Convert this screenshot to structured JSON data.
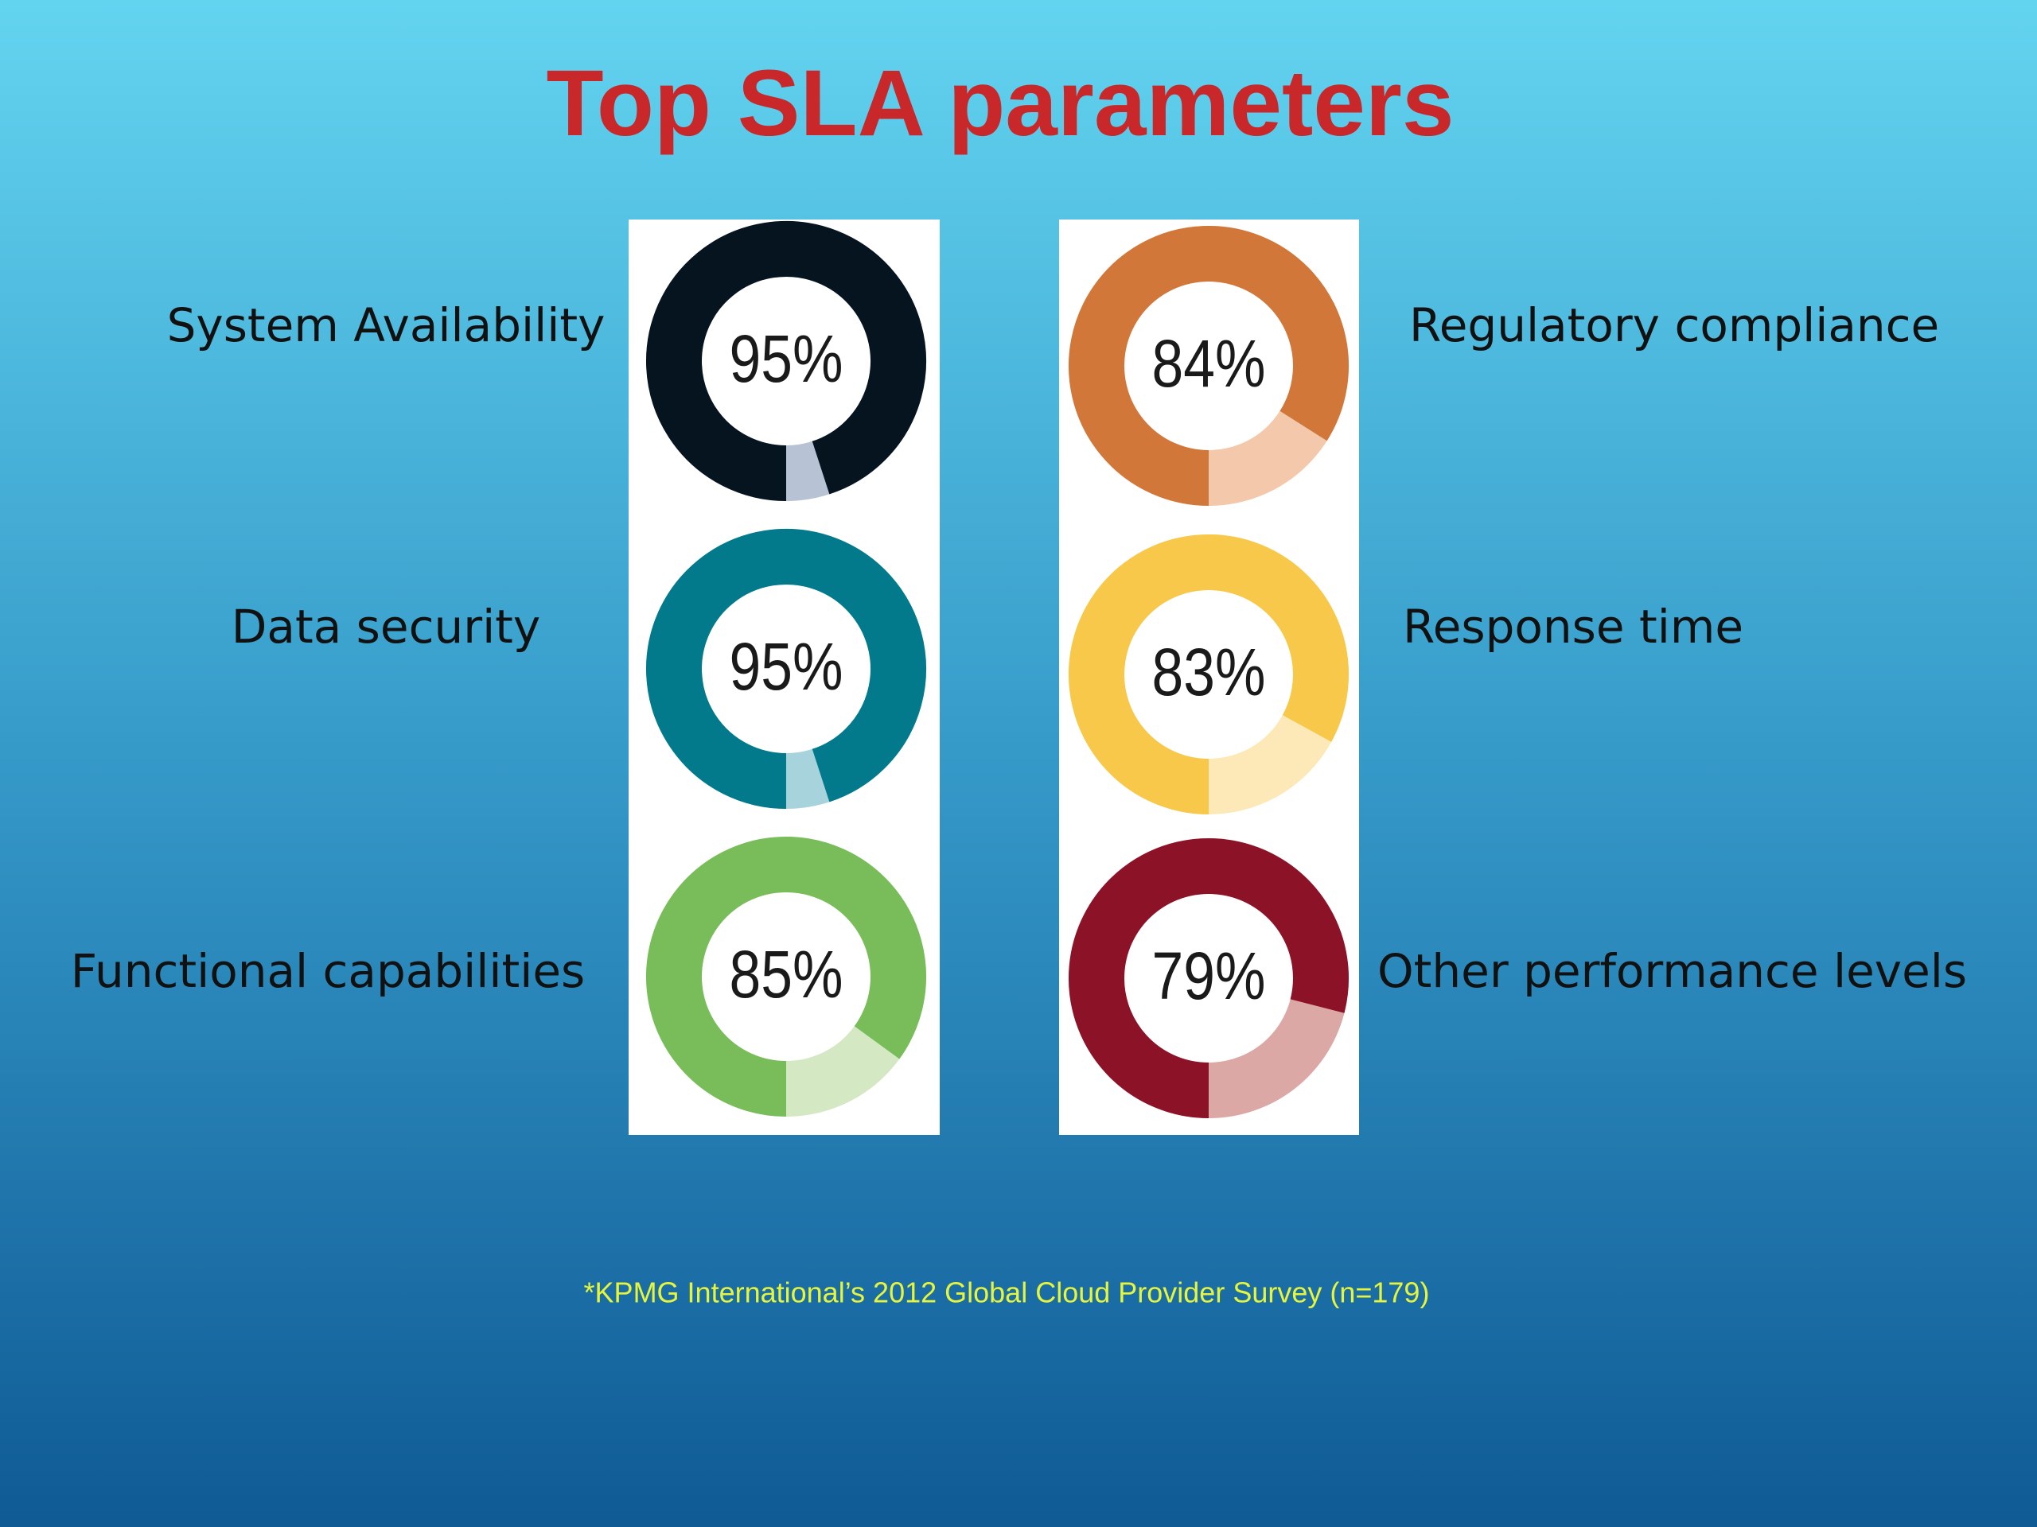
{
  "title": "Top SLA parameters",
  "chart_data": [
    {
      "type": "donut",
      "title": "System Availability",
      "values": [
        95
      ],
      "value_labels": [
        "95%"
      ],
      "ylim": [
        0,
        100
      ],
      "color": "#06141f",
      "rest_color": "#b7c2d4"
    },
    {
      "type": "donut",
      "title": "Data security",
      "values": [
        95
      ],
      "value_labels": [
        "95%"
      ],
      "ylim": [
        0,
        100
      ],
      "color": "#027a8c",
      "rest_color": "#a7d4dc"
    },
    {
      "type": "donut",
      "title": "Functional capabilities",
      "values": [
        85
      ],
      "value_labels": [
        "85%"
      ],
      "ylim": [
        0,
        100
      ],
      "color": "#79bd5a",
      "rest_color": "#d3e8c3"
    },
    {
      "type": "donut",
      "title": "Regulatory compliance",
      "values": [
        84
      ],
      "value_labels": [
        "84%"
      ],
      "ylim": [
        0,
        100
      ],
      "color": "#d2773a",
      "rest_color": "#f3c8ab"
    },
    {
      "type": "donut",
      "title": "Response time",
      "values": [
        83
      ],
      "value_labels": [
        "83%"
      ],
      "ylim": [
        0,
        100
      ],
      "color": "#f7c84a",
      "rest_color": "#fde9b8"
    },
    {
      "type": "donut",
      "title": "Other performance levels",
      "values": [
        79
      ],
      "value_labels": [
        "79%"
      ],
      "ylim": [
        0,
        100
      ],
      "color": "#8c1327",
      "rest_color": "#dba8a5"
    }
  ],
  "footnote": "*KPMG International’s 2012 Global Cloud Provider Survey (n=179)"
}
